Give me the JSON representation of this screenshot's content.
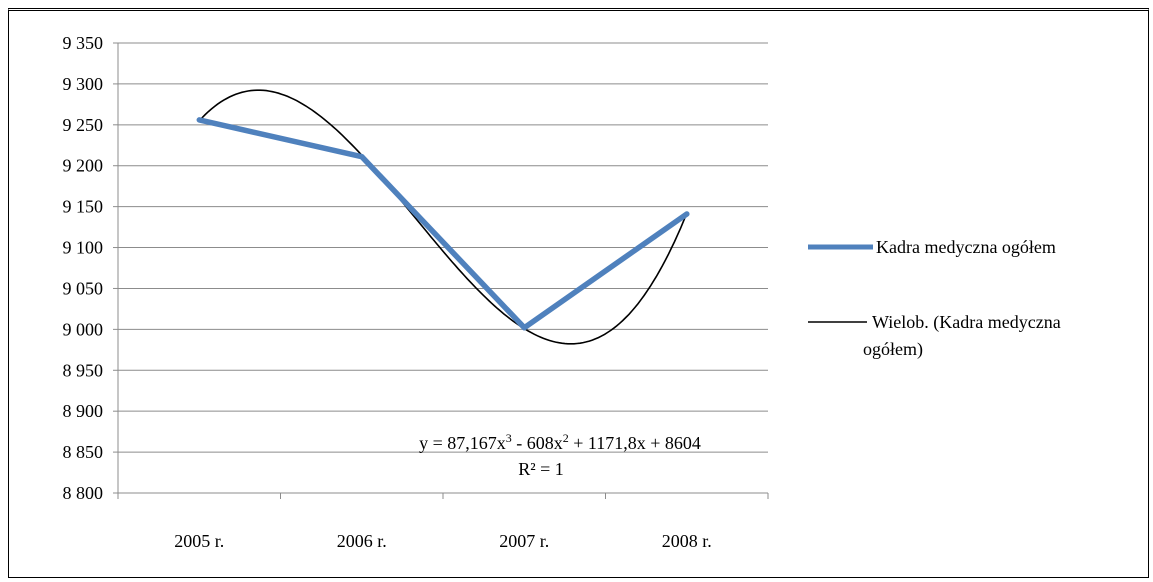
{
  "chart_data": {
    "type": "line",
    "categories": [
      "2005 r.",
      "2006 r.",
      "2007 r.",
      "2008 r."
    ],
    "series": [
      {
        "name": "Kadra medyczna ogółem",
        "values": [
          9256,
          9211,
          9002,
          9141
        ],
        "color": "#4f81bd"
      }
    ],
    "trendline": {
      "name": "Wielob. (Kadra medyczna ogółem)",
      "name_lines": [
        "Wielob. (Kadra medyczna",
        "ogółem)"
      ],
      "type": "polynomial",
      "order": 3,
      "coefficients": [
        87.167,
        -608,
        1171.8,
        8604
      ],
      "equation_parts": {
        "prefix": "y = 87,167x",
        "sup1": "3",
        "mid": " - 608x",
        "sup2": "2",
        "suffix": " + 1171,8x + 8604"
      },
      "r2_label": "R² = 1",
      "color": "#000000"
    },
    "y_ticks": [
      "9 350",
      "9 300",
      "9 250",
      "9 200",
      "9 150",
      "9 100",
      "9 050",
      "9 000",
      "8 950",
      "8 900",
      "8 850",
      "8 800"
    ],
    "ylim": [
      8800,
      9350
    ],
    "y_step": 50,
    "grid": true,
    "legend_position": "right",
    "title": "",
    "xlabel": "",
    "ylabel": ""
  }
}
